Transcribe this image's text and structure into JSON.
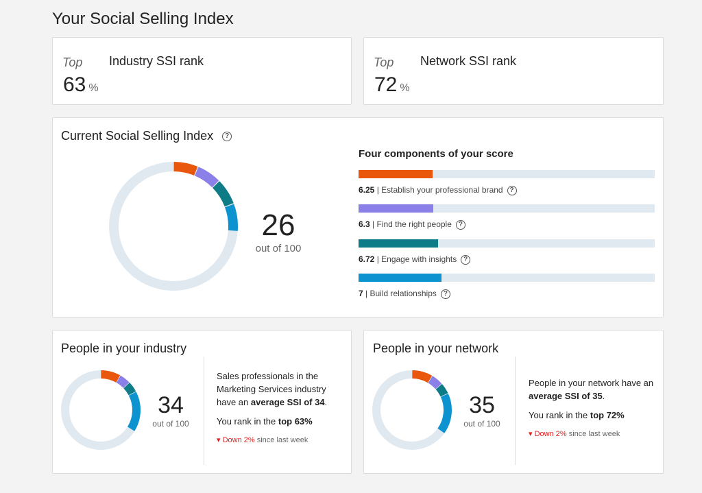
{
  "page": {
    "title": "Your Social Selling Index"
  },
  "industry_rank": {
    "top_label": "Top",
    "title": "Industry SSI rank",
    "value": "63",
    "unit": "%"
  },
  "network_rank": {
    "top_label": "Top",
    "title": "Network SSI rank",
    "value": "72",
    "unit": "%"
  },
  "current": {
    "title": "Current Social Selling Index",
    "score": "26",
    "out_of": "out of 100",
    "components_title": "Four components of your score",
    "components": [
      {
        "value": "6.25",
        "label": "Establish your professional brand",
        "fraction": 0.25,
        "color": "#e8570c"
      },
      {
        "value": "6.3",
        "label": "Find the right people",
        "fraction": 0.252,
        "color": "#8b7fe8"
      },
      {
        "value": "6.72",
        "label": "Engage with insights",
        "fraction": 0.269,
        "color": "#0e7c86"
      },
      {
        "value": "7",
        "label": "Build relationships",
        "fraction": 0.28,
        "color": "#0e93d1"
      }
    ]
  },
  "industry": {
    "title": "People in your industry",
    "score": "34",
    "out_of": "out of 100",
    "desc_pre": "Sales professionals in the Marketing Services industry have an ",
    "desc_bold": "average SSI of 34",
    "desc_post": ".",
    "rank_pre": "You rank in the ",
    "rank_bold": "top 63%",
    "trend_down": "Down 2%",
    "trend_rest": "since last week",
    "segments": [
      8.2,
      4.6,
      4.5,
      16.7
    ]
  },
  "network": {
    "title": "People in your network",
    "score": "35",
    "out_of": "out of 100",
    "desc_pre": "People in your network have an ",
    "desc_bold": "average SSI of 35",
    "desc_post": ".",
    "rank_pre": "You rank in the ",
    "rank_bold": "top 72%",
    "trend_down": "Down 2%",
    "trend_rest": "since last week",
    "segments": [
      8.5,
      5.0,
      4.6,
      16.9
    ]
  },
  "colors": {
    "track": "#e1e9f0",
    "segments": [
      "#e8570c",
      "#8b7fe8",
      "#0e7c86",
      "#0e93d1"
    ],
    "down": "#e0201e"
  }
}
